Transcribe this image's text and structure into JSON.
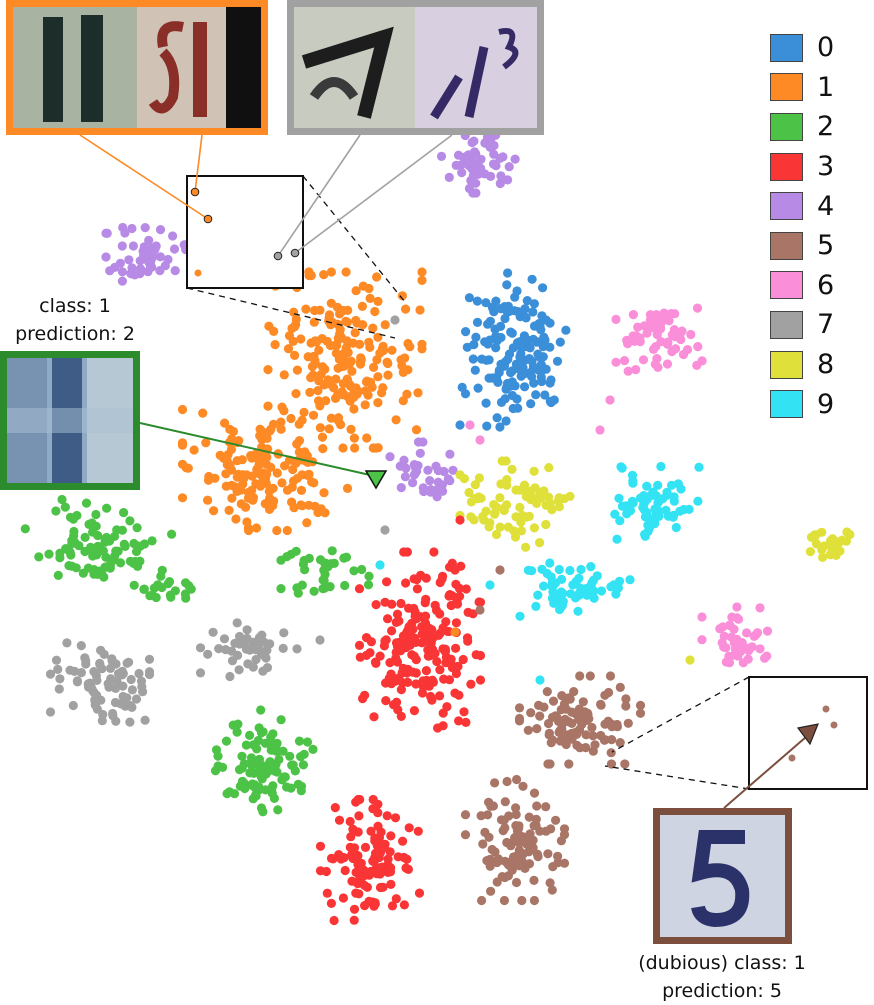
{
  "chart_data": {
    "type": "scatter",
    "title": "",
    "xlabel": "",
    "ylabel": "",
    "grid": false,
    "legend_placement": "top-right",
    "series": [
      {
        "name": "0",
        "color": "#3b8fd9"
      },
      {
        "name": "1",
        "color": "#fd8a25"
      },
      {
        "name": "2",
        "color": "#4cc347"
      },
      {
        "name": "3",
        "color": "#f93535"
      },
      {
        "name": "4",
        "color": "#b78ae5"
      },
      {
        "name": "5",
        "color": "#a87566"
      },
      {
        "name": "6",
        "color": "#fb8ed8"
      },
      {
        "name": "7",
        "color": "#a1a1a1"
      },
      {
        "name": "8",
        "color": "#e0e03a"
      },
      {
        "name": "9",
        "color": "#33e3f3"
      }
    ],
    "annotations": [
      {
        "id": "misclassified",
        "class_label": "class: 1",
        "prediction_label": "prediction: 2",
        "marker_color": "#4cc347"
      },
      {
        "id": "dubious",
        "class_label": "(dubious) class: 1",
        "prediction_label": "prediction: 5",
        "marker_color": "#a87566"
      }
    ]
  }
}
